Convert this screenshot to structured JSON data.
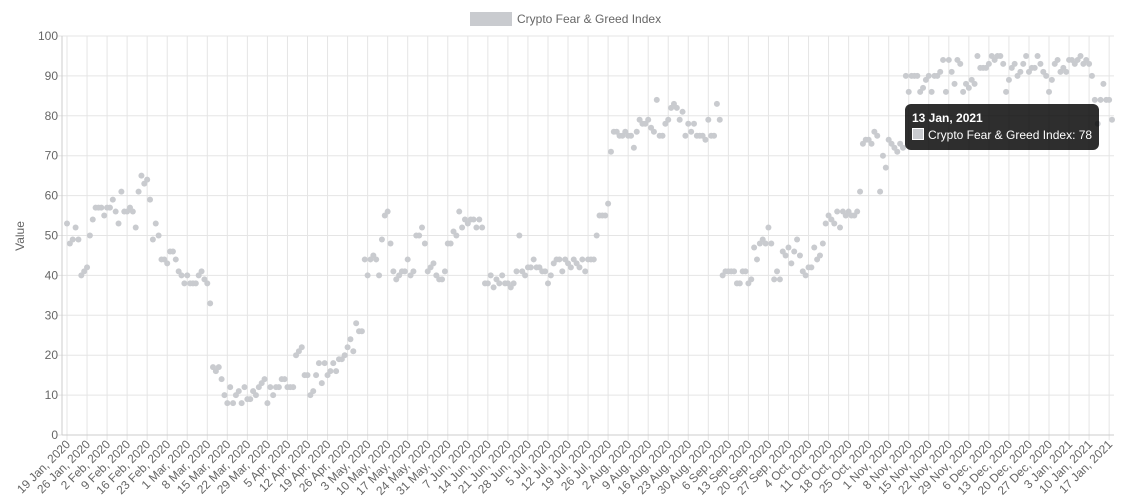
{
  "chart_data": {
    "type": "line",
    "y_label": "Value",
    "ylim": [
      0,
      100
    ],
    "yticks": [
      0,
      10,
      20,
      30,
      40,
      50,
      60,
      70,
      80,
      90,
      100
    ],
    "grid": true,
    "categories": [
      "19 Jan, 2020",
      null,
      null,
      null,
      null,
      null,
      null,
      "26 Jan, 2020",
      null,
      null,
      null,
      null,
      null,
      null,
      "2 Feb, 2020",
      null,
      null,
      null,
      null,
      null,
      null,
      "9 Feb, 2020",
      null,
      null,
      null,
      null,
      null,
      null,
      "16 Feb, 2020",
      null,
      null,
      null,
      null,
      null,
      null,
      "23 Feb, 2020",
      null,
      null,
      null,
      null,
      null,
      null,
      "1 Mar, 2020",
      null,
      null,
      null,
      null,
      null,
      null,
      "8 Mar, 2020",
      null,
      null,
      null,
      null,
      null,
      null,
      "15 Mar, 2020",
      null,
      null,
      null,
      null,
      null,
      null,
      "22 Mar, 2020",
      null,
      null,
      null,
      null,
      null,
      null,
      "29 Mar, 2020",
      null,
      null,
      null,
      null,
      null,
      null,
      "5 Apr, 2020",
      null,
      null,
      null,
      null,
      null,
      null,
      "12 Apr, 2020",
      null,
      null,
      null,
      null,
      null,
      null,
      "19 Apr, 2020",
      null,
      null,
      null,
      null,
      null,
      null,
      "26 Apr, 2020",
      null,
      null,
      null,
      null,
      null,
      null,
      "3 May, 2020",
      null,
      null,
      null,
      null,
      null,
      null,
      "10 May, 2020",
      null,
      null,
      null,
      null,
      null,
      null,
      "17 May, 2020",
      null,
      null,
      null,
      null,
      null,
      null,
      "24 May, 2020",
      null,
      null,
      null,
      null,
      null,
      null,
      "31 May, 2020",
      null,
      null,
      null,
      null,
      null,
      null,
      "7 Jun, 2020",
      null,
      null,
      null,
      null,
      null,
      null,
      "14 Jun, 2020",
      null,
      null,
      null,
      null,
      null,
      null,
      "21 Jun, 2020",
      null,
      null,
      null,
      null,
      null,
      null,
      "28 Jun, 2020",
      null,
      null,
      null,
      null,
      null,
      null,
      "5 Jul, 2020",
      null,
      null,
      null,
      null,
      null,
      null,
      "12 Jul, 2020",
      null,
      null,
      null,
      null,
      null,
      null,
      "19 Jul, 2020",
      null,
      null,
      null,
      null,
      null,
      null,
      "26 Jul, 2020",
      null,
      null,
      null,
      null,
      null,
      null,
      "2 Aug, 2020",
      null,
      null,
      null,
      null,
      null,
      null,
      "9 Aug, 2020",
      null,
      null,
      null,
      null,
      null,
      null,
      "16 Aug, 2020",
      null,
      null,
      null,
      null,
      null,
      null,
      "23 Aug, 2020",
      null,
      null,
      null,
      null,
      null,
      null,
      "30 Aug, 2020",
      null,
      null,
      null,
      null,
      null,
      null,
      "6 Sep, 2020",
      null,
      null,
      null,
      null,
      null,
      null,
      "13 Sep, 2020",
      null,
      null,
      null,
      null,
      null,
      null,
      "20 Sep, 2020",
      null,
      null,
      null,
      null,
      null,
      null,
      "27 Sep, 2020",
      null,
      null,
      null,
      null,
      null,
      null,
      "4 Oct, 2020",
      null,
      null,
      null,
      null,
      null,
      null,
      "11 Oct, 2020",
      null,
      null,
      null,
      null,
      null,
      null,
      "18 Oct, 2020",
      null,
      null,
      null,
      null,
      null,
      null,
      "25 Oct, 2020",
      null,
      null,
      null,
      null,
      null,
      null,
      "1 Nov, 2020",
      null,
      null,
      null,
      null,
      null,
      null,
      "8 Nov, 2020",
      null,
      null,
      null,
      null,
      null,
      null,
      "15 Nov, 2020",
      null,
      null,
      null,
      null,
      null,
      null,
      "22 Nov, 2020",
      null,
      null,
      null,
      null,
      null,
      null,
      "29 Nov, 2020",
      null,
      null,
      null,
      null,
      null,
      null,
      "6 Dec, 2020",
      null,
      null,
      null,
      null,
      null,
      null,
      "13 Dec, 2020",
      null,
      null,
      null,
      null,
      null,
      null,
      "20 Dec, 2020",
      null,
      null,
      null,
      null,
      null,
      null,
      "27 Dec, 2020",
      null,
      null,
      null,
      null,
      null,
      null,
      "3 Jan, 2021",
      null,
      null,
      null,
      null,
      null,
      null,
      "10 Jan, 2021",
      null,
      null,
      null,
      null,
      null,
      null,
      "17 Jan, 2021",
      null
    ],
    "series": [
      {
        "name": "Crypto Fear & Greed Index",
        "color": "#c9cbcf",
        "values": [
          53,
          48,
          49,
          52,
          49,
          40,
          41,
          42,
          50,
          54,
          57,
          57,
          57,
          55,
          57,
          57,
          59,
          56,
          53,
          61,
          56,
          56,
          57,
          56,
          52,
          61,
          65,
          63,
          64,
          59,
          49,
          53,
          50,
          44,
          44,
          43,
          46,
          46,
          44,
          41,
          40,
          38,
          40,
          38,
          38,
          38,
          40,
          41,
          39,
          38,
          33,
          17,
          16,
          17,
          14,
          10,
          8,
          12,
          8,
          10,
          11,
          8,
          12,
          9,
          9,
          11,
          10,
          12,
          13,
          14,
          8,
          12,
          10,
          12,
          12,
          14,
          14,
          12,
          12,
          12,
          20,
          21,
          22,
          15,
          15,
          10,
          11,
          15,
          18,
          13,
          18,
          15,
          16,
          18,
          16,
          19,
          19,
          20,
          22,
          24,
          21,
          28,
          26,
          26,
          44,
          40,
          44,
          45,
          44,
          40,
          49,
          55,
          56,
          48,
          41,
          39,
          40,
          41,
          41,
          44,
          40,
          41,
          50,
          50,
          52,
          48,
          41,
          42,
          43,
          40,
          39,
          39,
          41,
          48,
          48,
          51,
          50,
          56,
          52,
          54,
          53,
          54,
          54,
          52,
          54,
          52,
          38,
          38,
          40,
          37,
          39,
          38,
          40,
          38,
          38,
          37,
          38,
          41,
          50,
          41,
          40,
          42,
          42,
          44,
          42,
          42,
          41,
          41,
          38,
          40,
          43,
          44,
          44,
          41,
          44,
          43,
          42,
          44,
          43,
          42,
          44,
          41,
          44,
          44,
          44,
          50,
          55,
          55,
          55,
          58,
          71,
          76,
          76,
          75,
          75,
          76,
          75,
          75,
          72,
          76,
          79,
          78,
          78,
          79,
          77,
          76,
          84,
          75,
          75,
          78,
          79,
          82,
          83,
          82,
          79,
          81,
          75,
          78,
          76,
          78,
          75,
          75,
          75,
          74,
          79,
          75,
          75,
          83,
          79,
          40,
          41,
          41,
          41,
          41,
          38,
          38,
          41,
          41,
          38,
          39,
          47,
          44,
          48,
          49,
          48,
          52,
          48,
          39,
          41,
          39,
          46,
          45,
          47,
          43,
          46,
          49,
          45,
          41,
          40,
          42,
          42,
          47,
          44,
          45,
          48,
          53,
          55,
          54,
          53,
          56,
          52,
          56,
          55,
          56,
          55,
          55,
          56,
          61,
          73,
          74,
          74,
          73,
          76,
          75,
          61,
          70,
          67,
          74,
          73,
          72,
          71,
          73,
          72,
          90,
          86,
          90,
          90,
          90,
          86,
          87,
          89,
          90,
          86,
          90,
          90,
          91,
          94,
          86,
          94,
          91,
          88,
          94,
          93,
          86,
          88,
          87,
          89,
          88,
          95,
          92,
          92,
          92,
          93,
          95,
          94,
          95,
          95,
          93,
          86,
          89,
          92,
          93,
          90,
          91,
          93,
          95,
          91,
          92,
          92,
          95,
          93,
          91,
          90,
          86,
          89,
          93,
          94,
          91,
          92,
          91,
          94,
          94,
          93,
          94,
          95,
          93,
          94,
          93,
          90,
          84,
          78,
          84,
          88,
          84,
          84,
          79
        ]
      }
    ],
    "tooltip": {
      "title": "13 Jan, 2021",
      "text": "Crypto Fear & Greed Index: 78"
    }
  }
}
